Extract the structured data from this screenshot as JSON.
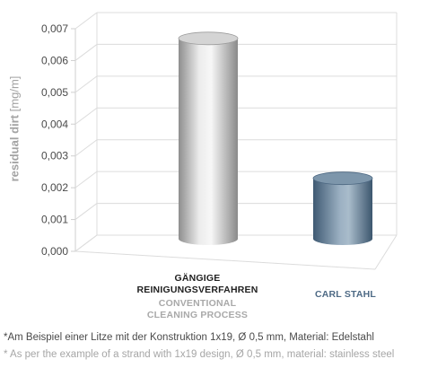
{
  "chart_data": {
    "type": "bar",
    "style": "3d-cylinder",
    "categories": [
      "Gängige Reinigungsverfahren / Conventional cleaning process",
      "Carl Stahl"
    ],
    "values": [
      0.0063,
      0.0019
    ],
    "ylabel": "residual dirt",
    "yunit": "[mg/m]",
    "ylim": [
      0,
      0.007
    ],
    "yticks": [
      "0,000",
      "0,001",
      "0,002",
      "0,003",
      "0,004",
      "0,005",
      "0,006",
      "0,007"
    ],
    "grid": true,
    "colors": {
      "bar1": "#b9b9b9",
      "bar2": "#5c7893"
    }
  },
  "labels": {
    "cat1_de_line1": "GÄNGIGE",
    "cat1_de_line2": "REINIGUNGSVERFAHREN",
    "cat1_en_line1": "CONVENTIONAL",
    "cat1_en_line2": "CLEANING PROCESS",
    "cat2": "CARL STAHL"
  },
  "footnotes": {
    "de": "*Am Beispiel einer Litze mit der Konstruktion 1x19, Ø 0,5 mm, Material: Edelstahl",
    "en": "* As per the example of a strand with 1x19 design, Ø 0,5 mm, material: stainless steel"
  }
}
